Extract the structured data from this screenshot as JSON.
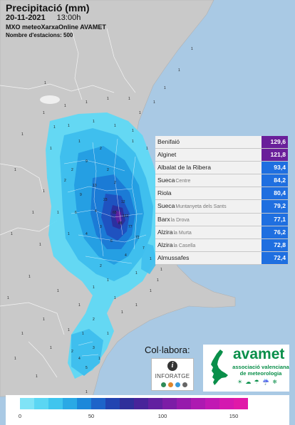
{
  "header": {
    "title": "Precipitació (mm)",
    "date": "20-11-2021",
    "time": "13:00h",
    "source": "MXO meteoXarxaOnline AVAMET",
    "stations": "Nombre d'estacions: 500"
  },
  "ranking": [
    {
      "name": "Benifaió",
      "sub": "",
      "value": "129,6",
      "color": "#6a1f9a"
    },
    {
      "name": "Alginet",
      "sub": "",
      "value": "121,8",
      "color": "#6a1f9a"
    },
    {
      "name": "Albalat de la Ribera",
      "sub": "",
      "value": "93,4",
      "color": "#1f6fe0"
    },
    {
      "name": "Sueca",
      "sub": "Centre",
      "value": "84,2",
      "color": "#1f6fe0"
    },
    {
      "name": "Riola",
      "sub": "",
      "value": "80,4",
      "color": "#1f6fe0"
    },
    {
      "name": "Sueca",
      "sub": "Muntanyeta dels Sants",
      "value": "79,2",
      "color": "#1f6fe0"
    },
    {
      "name": "Barx",
      "sub": "la Drova",
      "value": "77,1",
      "color": "#1f6fe0"
    },
    {
      "name": "Alzira",
      "sub": "la Murta",
      "value": "76,2",
      "color": "#1f6fe0"
    },
    {
      "name": "Alzira",
      "sub": "la Casella",
      "value": "72,8",
      "color": "#1f6fe0"
    },
    {
      "name": "Almussafes",
      "sub": "",
      "value": "72,4",
      "color": "#1f6fe0"
    }
  ],
  "legend": {
    "ticks": [
      "0",
      "50",
      "100",
      "150"
    ],
    "tick_values": [
      0,
      50,
      100,
      150
    ],
    "max": 160,
    "colors": [
      "#7fe3f6",
      "#5bd6f3",
      "#3fc5ee",
      "#2aa9e5",
      "#1c88da",
      "#1d64c9",
      "#2244b1",
      "#2f2f9a",
      "#48249a",
      "#6220a0",
      "#7c1da6",
      "#961aac",
      "#ad19b1",
      "#c118b3",
      "#d418b0",
      "#e019a8"
    ]
  },
  "sponsors": {
    "label": "Col·labora:",
    "inforatge": "INFORATGE",
    "inforatge_icon": "info-icon",
    "inforatge_dots": [
      "#2e8b57",
      "#e0872b",
      "#3a9ad9",
      "#666666"
    ],
    "avamet_name": "avamet",
    "avamet_desc": "associació valenciana de meteorologia",
    "avamet_symbols": "☀ ☁ ☂ ☔ ❄"
  }
}
